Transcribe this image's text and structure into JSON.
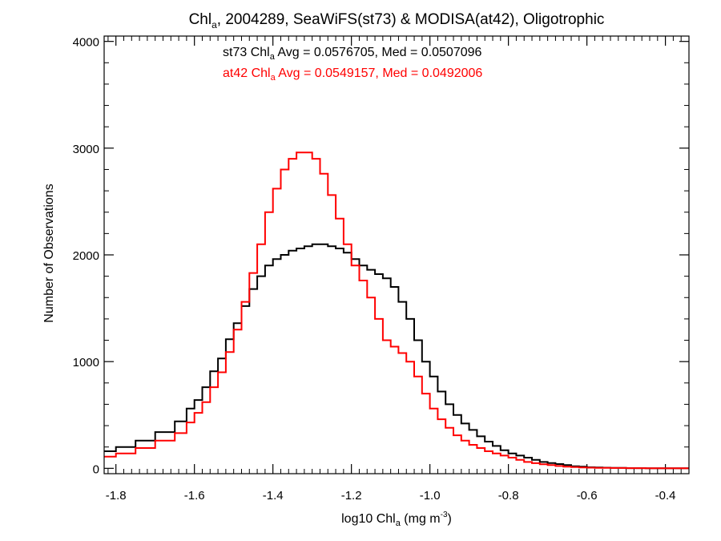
{
  "chart_data": {
    "type": "line",
    "title": {
      "prefix": "Chl",
      "sub": "a",
      "suffix": ", 2004289, SeaWiFS(st73) & MODISA(at42), Oligotrophic"
    },
    "xlabel": {
      "prefix": "log10 Chl",
      "sub": "a",
      "mid": " (mg m",
      "sup": "-3",
      "suffix": ")"
    },
    "ylabel": "Number of Observations",
    "xlim": [
      -1.83,
      -0.34
    ],
    "ylim": [
      -50,
      4050
    ],
    "x_ticks": [
      -1.8,
      -1.6,
      -1.4,
      -1.2,
      -1.0,
      -0.8,
      -0.6,
      -0.4
    ],
    "x_tick_labels": [
      "-1.8",
      "-1.6",
      "-1.4",
      "-1.2",
      "-1.0",
      "-0.8",
      "-0.6",
      "-0.4"
    ],
    "y_ticks": [
      0,
      1000,
      2000,
      3000,
      4000
    ],
    "y_tick_labels": [
      "0",
      "1000",
      "2000",
      "3000",
      "4000"
    ],
    "grid": false,
    "annotations": [
      {
        "prefix": "st73 Chl",
        "sub": "a",
        "suffix": " Avg = 0.0576705, Med = 0.0507096",
        "color": "#000000"
      },
      {
        "prefix": "at42 Chl",
        "sub": "a",
        "suffix": " Avg = 0.0549157, Med = 0.0492006",
        "color": "#ff0000"
      }
    ],
    "series": [
      {
        "color": "#000000",
        "x": [
          -1.83,
          -1.8,
          -1.75,
          -1.7,
          -1.65,
          -1.62,
          -1.6,
          -1.58,
          -1.56,
          -1.54,
          -1.52,
          -1.5,
          -1.48,
          -1.46,
          -1.44,
          -1.42,
          -1.4,
          -1.38,
          -1.36,
          -1.34,
          -1.32,
          -1.3,
          -1.28,
          -1.26,
          -1.24,
          -1.22,
          -1.2,
          -1.18,
          -1.16,
          -1.14,
          -1.12,
          -1.1,
          -1.08,
          -1.06,
          -1.04,
          -1.02,
          -1.0,
          -0.98,
          -0.96,
          -0.94,
          -0.92,
          -0.9,
          -0.88,
          -0.86,
          -0.84,
          -0.82,
          -0.8,
          -0.78,
          -0.76,
          -0.74,
          -0.72,
          -0.7,
          -0.68,
          -0.66,
          -0.64,
          -0.62,
          -0.6,
          -0.58,
          -0.56,
          -0.54,
          -0.5,
          -0.45,
          -0.4,
          -0.34
        ],
        "values": [
          160,
          200,
          260,
          340,
          440,
          560,
          640,
          760,
          910,
          1030,
          1210,
          1360,
          1520,
          1680,
          1800,
          1900,
          1960,
          2000,
          2040,
          2060,
          2080,
          2100,
          2100,
          2080,
          2060,
          2020,
          1960,
          1900,
          1860,
          1820,
          1780,
          1700,
          1560,
          1400,
          1200,
          1000,
          860,
          720,
          600,
          500,
          420,
          360,
          300,
          250,
          210,
          170,
          140,
          120,
          100,
          80,
          60,
          50,
          40,
          30,
          20,
          15,
          10,
          8,
          6,
          4,
          2,
          1,
          0,
          0
        ]
      },
      {
        "color": "#ff0000",
        "x": [
          -1.83,
          -1.8,
          -1.75,
          -1.7,
          -1.65,
          -1.62,
          -1.6,
          -1.58,
          -1.56,
          -1.54,
          -1.52,
          -1.5,
          -1.48,
          -1.46,
          -1.44,
          -1.42,
          -1.4,
          -1.38,
          -1.36,
          -1.34,
          -1.32,
          -1.3,
          -1.28,
          -1.26,
          -1.24,
          -1.22,
          -1.2,
          -1.18,
          -1.16,
          -1.14,
          -1.12,
          -1.1,
          -1.08,
          -1.06,
          -1.04,
          -1.02,
          -1.0,
          -0.98,
          -0.96,
          -0.94,
          -0.92,
          -0.9,
          -0.88,
          -0.86,
          -0.84,
          -0.82,
          -0.8,
          -0.78,
          -0.76,
          -0.74,
          -0.72,
          -0.7,
          -0.68,
          -0.66,
          -0.64,
          -0.62,
          -0.6,
          -0.58,
          -0.56,
          -0.54,
          -0.5,
          -0.45,
          -0.4,
          -0.34
        ],
        "values": [
          110,
          140,
          190,
          260,
          330,
          430,
          520,
          620,
          760,
          900,
          1090,
          1300,
          1560,
          1830,
          2100,
          2400,
          2620,
          2800,
          2900,
          2960,
          2960,
          2900,
          2760,
          2560,
          2340,
          2100,
          1900,
          1760,
          1600,
          1400,
          1200,
          1140,
          1080,
          1000,
          860,
          700,
          560,
          460,
          380,
          310,
          260,
          220,
          190,
          160,
          140,
          120,
          100,
          80,
          60,
          48,
          38,
          30,
          22,
          16,
          12,
          8,
          6,
          5,
          4,
          3,
          2,
          1,
          0,
          0
        ]
      }
    ]
  }
}
